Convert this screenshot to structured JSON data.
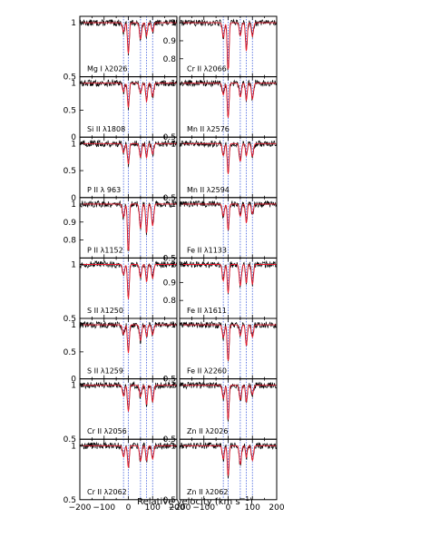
{
  "figure": {
    "xlabel": "Relative velocity  (km s",
    "xlabel_sup": "−1",
    "xlabel_end": ")"
  },
  "chart_data": {
    "type": "line",
    "xlim": [
      -200,
      200
    ],
    "x_ticks": [
      "−200",
      "−100",
      "0",
      "100",
      "200"
    ],
    "component_velocities_kms": [
      -20,
      0,
      50,
      75,
      100
    ],
    "colors": {
      "data": "#000000",
      "model": "#e8192c",
      "components": "#3b5bdb"
    },
    "panels": [
      {
        "column": "left",
        "row": 0,
        "label": "Mg I λ2026",
        "ylim": [
          0.5,
          1.0
        ],
        "y_ticks": [
          "1"
        ],
        "bottom_tick": "0.5"
      },
      {
        "column": "left",
        "row": 1,
        "label": "Si II λ1808",
        "ylim": [
          0.0,
          1.0
        ],
        "y_ticks": [
          "1",
          "0.5"
        ],
        "bottom_tick": "0"
      },
      {
        "column": "left",
        "row": 2,
        "label": "P II λ 963",
        "ylim": [
          0.0,
          1.0
        ],
        "y_ticks": [
          "1",
          "0.5"
        ],
        "bottom_tick": "0"
      },
      {
        "column": "left",
        "row": 3,
        "label": "P II λ1152",
        "ylim": [
          0.7,
          1.0
        ],
        "y_ticks": [
          "1",
          "0.9",
          "0.8"
        ],
        "bottom_tick": ""
      },
      {
        "column": "left",
        "row": 4,
        "label": "S II λ1250",
        "ylim": [
          0.5,
          1.0
        ],
        "y_ticks": [
          "1"
        ],
        "bottom_tick": "0.5"
      },
      {
        "column": "left",
        "row": 5,
        "label": "S II λ1259",
        "ylim": [
          0.0,
          1.0
        ],
        "y_ticks": [
          "1",
          "0.5"
        ],
        "bottom_tick": "0"
      },
      {
        "column": "left",
        "row": 6,
        "label": "Cr II λ2056",
        "ylim": [
          0.5,
          1.0
        ],
        "y_ticks": [
          "1"
        ],
        "bottom_tick": "0.5"
      },
      {
        "column": "left",
        "row": 7,
        "label": "Cr II λ2062",
        "ylim": [
          0.5,
          1.0
        ],
        "y_ticks": [
          "1"
        ],
        "bottom_tick": "0.5"
      },
      {
        "column": "right",
        "row": 0,
        "label": "Cr II λ2066",
        "ylim": [
          0.7,
          1.0
        ],
        "y_ticks": [
          "1",
          "0.9",
          "0.8"
        ],
        "bottom_tick": ""
      },
      {
        "column": "right",
        "row": 1,
        "label": "Mn II λ2576",
        "ylim": [
          0.5,
          1.0
        ],
        "y_ticks": [
          "1"
        ],
        "bottom_tick": "0.5"
      },
      {
        "column": "right",
        "row": 2,
        "label": "Mn II λ2594",
        "ylim": [
          0.5,
          1.0
        ],
        "y_ticks": [
          "1"
        ],
        "bottom_tick": "0.5"
      },
      {
        "column": "right",
        "row": 3,
        "label": "Fe II λ1133",
        "ylim": [
          0.5,
          1.0
        ],
        "y_ticks": [
          "1"
        ],
        "bottom_tick": "0.5"
      },
      {
        "column": "right",
        "row": 4,
        "label": "Fe II λ1611",
        "ylim": [
          0.7,
          1.0
        ],
        "y_ticks": [
          "1",
          "0.9",
          "0.8"
        ],
        "bottom_tick": ""
      },
      {
        "column": "right",
        "row": 5,
        "label": "Fe II λ2260",
        "ylim": [
          0.5,
          1.0
        ],
        "y_ticks": [
          "1"
        ],
        "bottom_tick": "0.5"
      },
      {
        "column": "right",
        "row": 6,
        "label": "Zn II λ2026",
        "ylim": [
          0.5,
          1.0
        ],
        "y_ticks": [
          "1"
        ],
        "bottom_tick": "0.5"
      },
      {
        "column": "right",
        "row": 7,
        "label": "Zn II λ2062",
        "ylim": [
          0.5,
          1.0
        ],
        "y_ticks": [
          "1"
        ],
        "bottom_tick": "0.5"
      }
    ]
  }
}
